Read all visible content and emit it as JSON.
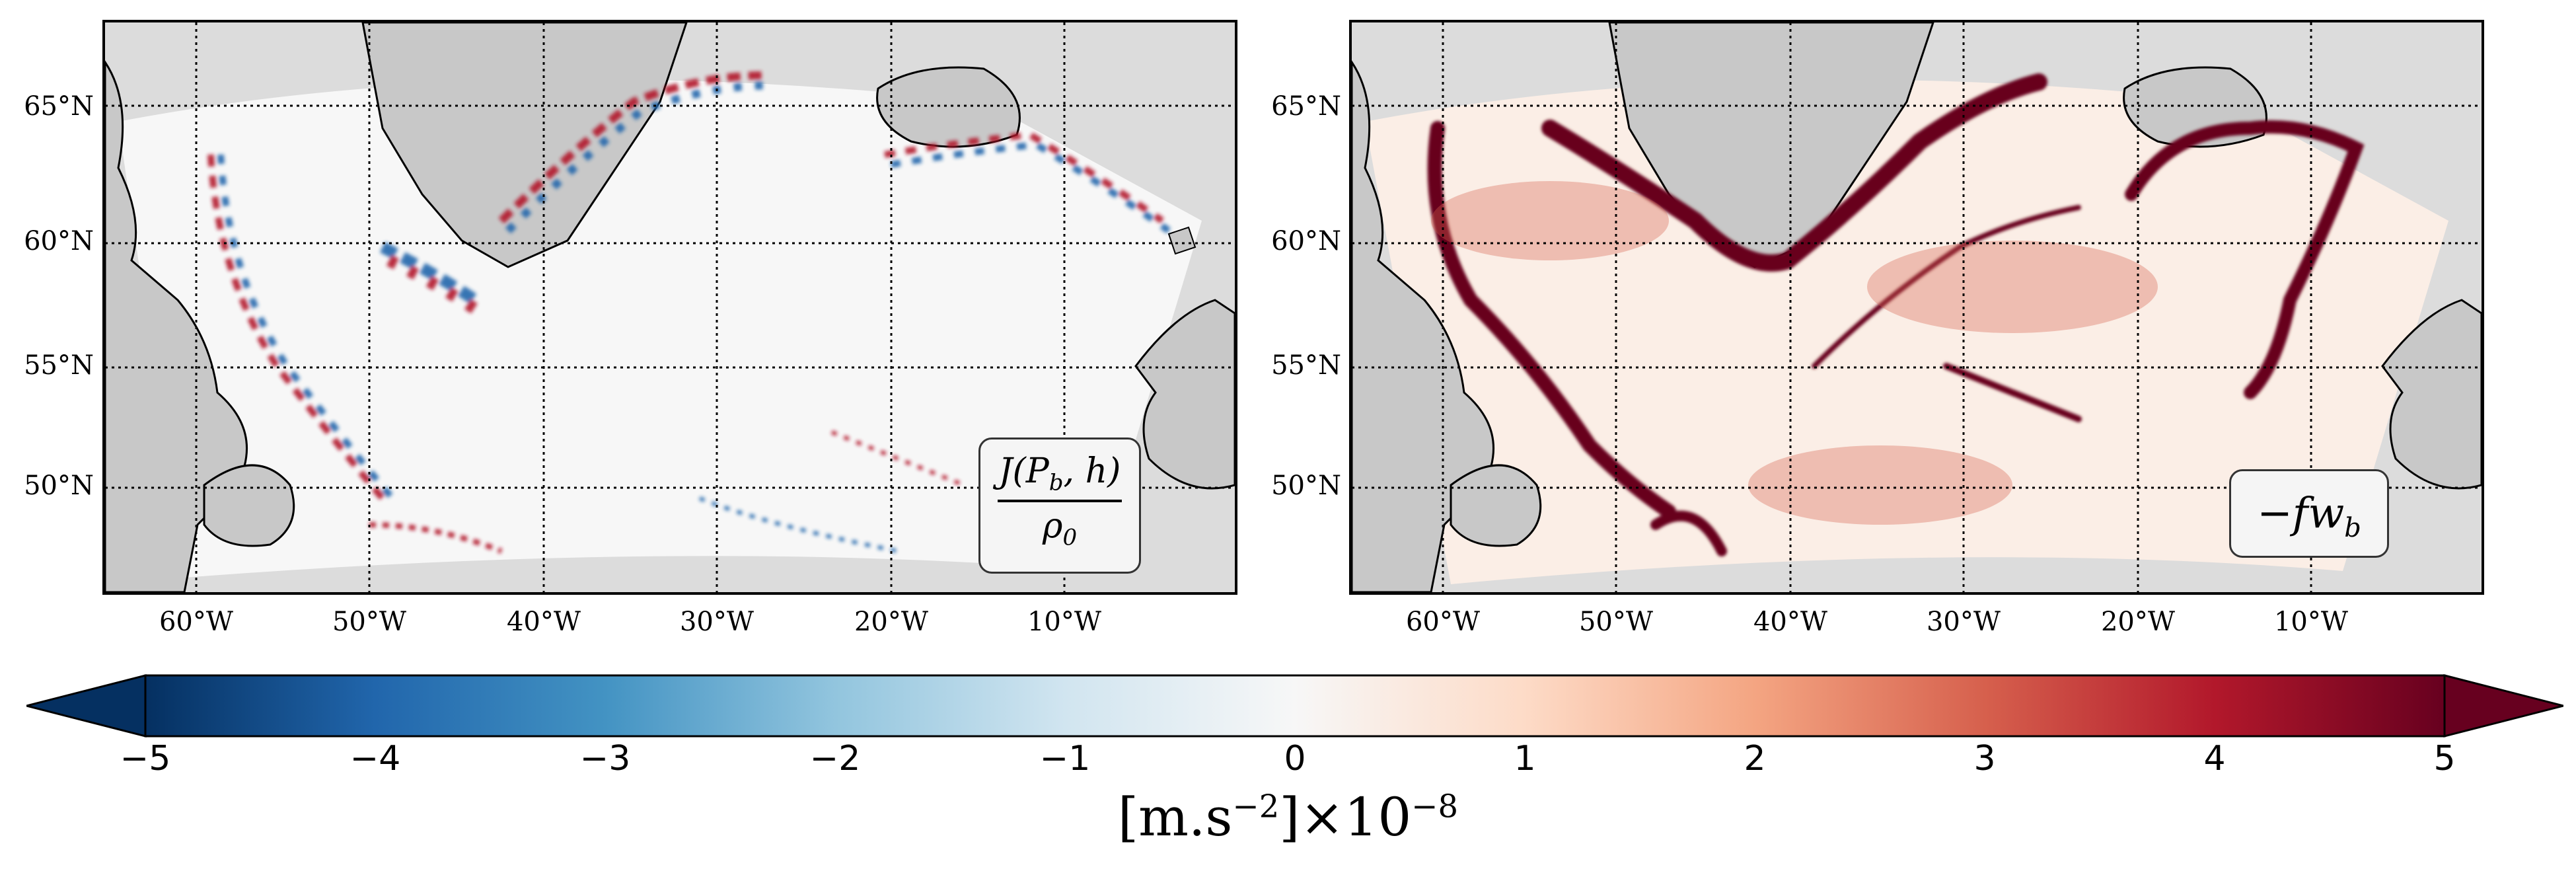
{
  "lat_labels": [
    "65°N",
    "60°N",
    "55°N",
    "50°N"
  ],
  "lon_labels": [
    "60°W",
    "50°W",
    "40°W",
    "30°W",
    "20°W",
    "10°W"
  ],
  "panels": [
    {
      "id": "left",
      "formula_num": "J(P",
      "formula_num_sub": "b",
      "formula_num_tail": ", h)",
      "formula_den": "ρ",
      "formula_den_sub": "0"
    },
    {
      "id": "right",
      "formula": "−fw",
      "formula_sub": "b"
    }
  ],
  "colorbar": {
    "ticks": [
      "−5",
      "−4",
      "−3",
      "−2",
      "−1",
      "0",
      "1",
      "2",
      "3",
      "4",
      "5"
    ],
    "label_main": "[m.s",
    "label_exp": "−2",
    "label_mid": "]×10",
    "label_exp2": "−8",
    "colormap": "RdBu_r",
    "range": [
      -5,
      5
    ],
    "extend": "both"
  },
  "colors": {
    "land": "#c8c8c8",
    "ocean_mask": "#dcdcdc",
    "coast": "#000000"
  }
}
